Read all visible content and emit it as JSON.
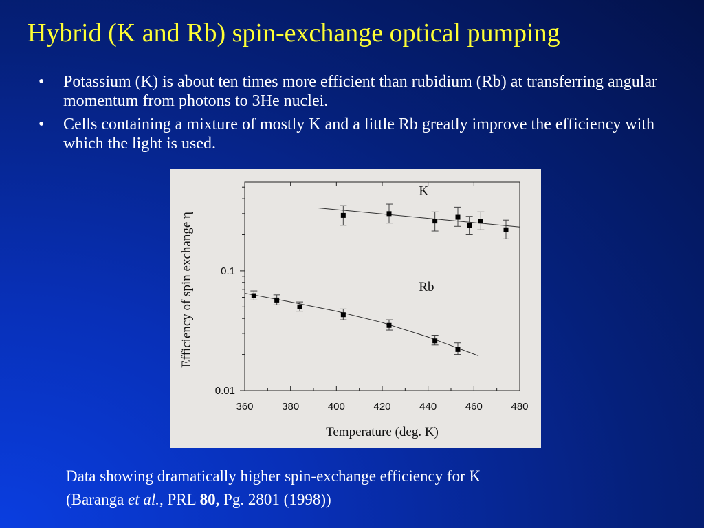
{
  "slide": {
    "title": "Hybrid (K and Rb) spin-exchange optical pumping",
    "bullets": [
      "Potassium (K) is about ten times more efficient than rubidium (Rb) at transferring angular momentum from photons to 3He nuclei.",
      "Cells containing a mixture of mostly K and a little Rb greatly improve the efficiency with which the light is used."
    ],
    "bullet_symbol": "•",
    "caption": {
      "line1": "Data showing dramatically higher spin-exchange efficiency for K",
      "open": "(Baranga ",
      "etal": "et al.,",
      "journal": " PRL ",
      "volume": "80,",
      "rest": " Pg. 2801 (1998))"
    }
  },
  "chart_data": {
    "type": "scatter",
    "xlabel": "Temperature (deg. K)",
    "ylabel": "Efficiency of spin exchange η",
    "xlim": [
      360,
      480
    ],
    "ylim": [
      0.01,
      0.55
    ],
    "yscale": "log",
    "xticks": [
      360,
      380,
      400,
      420,
      440,
      460,
      480
    ],
    "yticks": [
      {
        "value": 0.01,
        "label": "0.01"
      },
      {
        "value": 0.1,
        "label": "0.1"
      }
    ],
    "grid": false,
    "series": [
      {
        "name": "K",
        "points": [
          {
            "x": 403,
            "y": 0.29,
            "lo": 0.24,
            "hi": 0.35
          },
          {
            "x": 423,
            "y": 0.3,
            "lo": 0.25,
            "hi": 0.36
          },
          {
            "x": 443,
            "y": 0.26,
            "lo": 0.215,
            "hi": 0.31
          },
          {
            "x": 453,
            "y": 0.28,
            "lo": 0.235,
            "hi": 0.34
          },
          {
            "x": 458,
            "y": 0.24,
            "lo": 0.2,
            "hi": 0.285
          },
          {
            "x": 463,
            "y": 0.26,
            "lo": 0.22,
            "hi": 0.31
          },
          {
            "x": 474,
            "y": 0.22,
            "lo": 0.185,
            "hi": 0.265
          }
        ],
        "fit": [
          [
            392,
            0.335
          ],
          [
            480,
            0.232
          ]
        ]
      },
      {
        "name": "Rb",
        "points": [
          {
            "x": 364,
            "y": 0.062,
            "lo": 0.057,
            "hi": 0.068
          },
          {
            "x": 374,
            "y": 0.057,
            "lo": 0.052,
            "hi": 0.063
          },
          {
            "x": 384,
            "y": 0.05,
            "lo": 0.046,
            "hi": 0.055
          },
          {
            "x": 403,
            "y": 0.043,
            "lo": 0.039,
            "hi": 0.048
          },
          {
            "x": 423,
            "y": 0.035,
            "lo": 0.032,
            "hi": 0.039
          },
          {
            "x": 443,
            "y": 0.026,
            "lo": 0.024,
            "hi": 0.029
          },
          {
            "x": 453,
            "y": 0.022,
            "lo": 0.02,
            "hi": 0.025
          }
        ],
        "fit": [
          [
            360,
            0.065
          ],
          [
            380,
            0.055
          ],
          [
            400,
            0.046
          ],
          [
            420,
            0.037
          ],
          [
            440,
            0.028
          ],
          [
            462,
            0.0195
          ]
        ]
      }
    ],
    "annotations": [
      {
        "text": "K",
        "x": 436,
        "y": 0.43
      },
      {
        "text": "Rb",
        "x": 436,
        "y": 0.068
      }
    ]
  }
}
